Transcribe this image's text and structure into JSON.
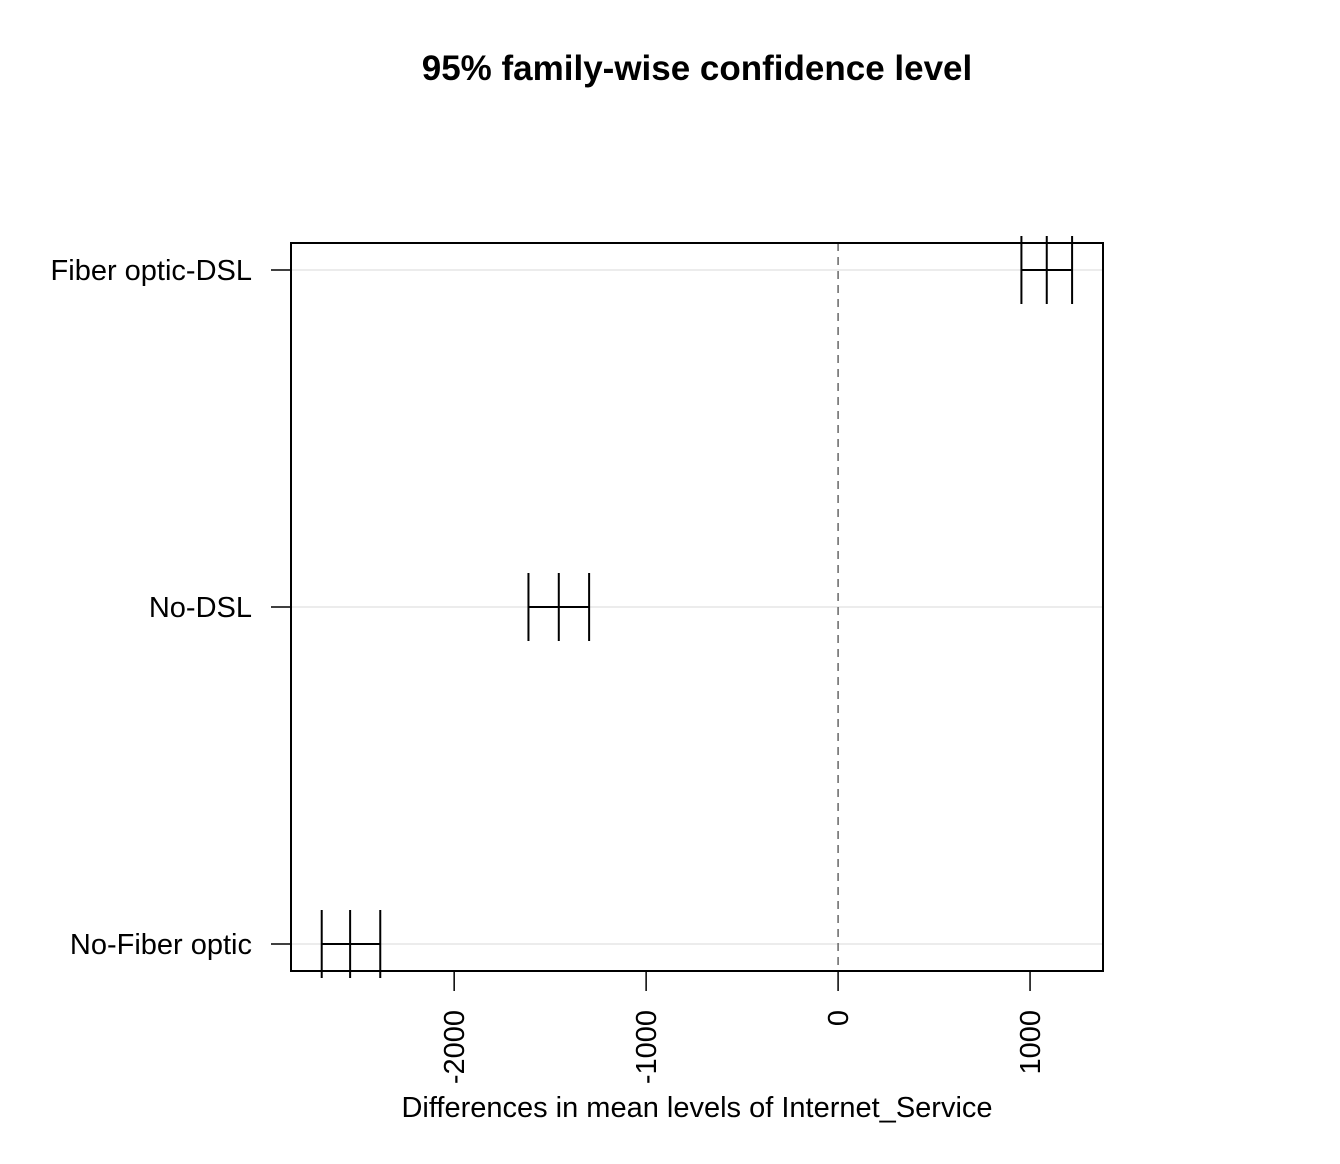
{
  "chart_data": {
    "type": "interval",
    "title": "95% family-wise confidence level",
    "xlabel": "Differences in mean levels of Internet_Service",
    "ylabel": "",
    "xlim": [
      -2850,
      1380
    ],
    "x_ticks": [
      -2000,
      -1000,
      0,
      1000
    ],
    "x_tick_labels": [
      "-2000",
      "-1000",
      "0",
      "1000"
    ],
    "reference_line": 0,
    "grid": true,
    "comparisons": [
      {
        "label": "Fiber optic-DSL",
        "lower": 955,
        "estimate": 1087,
        "upper": 1219
      },
      {
        "label": "No-DSL",
        "lower": -1613,
        "estimate": -1455,
        "upper": -1297
      },
      {
        "label": "No-Fiber optic",
        "lower": -2690,
        "estimate": -2542,
        "upper": -2385
      }
    ],
    "colors": {
      "interval": "#000000",
      "reference_line": "#666666",
      "grid": "#e6e6e6",
      "frame": "#000000"
    }
  }
}
